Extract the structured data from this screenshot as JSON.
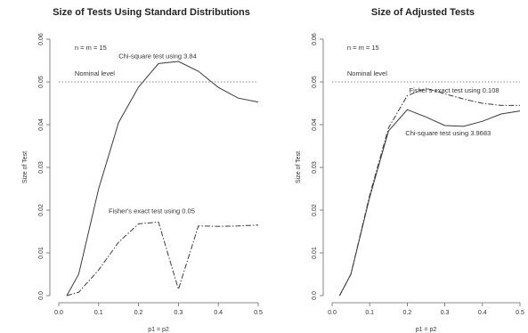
{
  "chart_data": [
    {
      "type": "line",
      "title": "Size of Tests Using Standard Distributions",
      "xlabel": "p1 = p2",
      "ylabel": "Size of Test",
      "xlim": [
        0.0,
        0.5
      ],
      "ylim": [
        0.0,
        0.06
      ],
      "xticks": [
        "0.0",
        "0.1",
        "0.2",
        "0.3",
        "0.4",
        "0.5"
      ],
      "yticks": [
        "0.0",
        "0.01",
        "0.02",
        "0.03",
        "0.04",
        "0.05",
        "0.06"
      ],
      "grid": false,
      "annotations": [
        {
          "text": "n = m = 15",
          "x": 0.04,
          "y": 0.0575
        },
        {
          "text": "Nominal level",
          "x": 0.04,
          "y": 0.0515
        },
        {
          "text": "Chi-square test using 3.84",
          "x": 0.15,
          "y": 0.0555
        },
        {
          "text": "Fisher's exact test using 0.05",
          "x": 0.125,
          "y": 0.0193
        }
      ],
      "series": [
        {
          "style": "solid",
          "x": [
            0.02,
            0.05,
            0.1,
            0.15,
            0.2,
            0.25,
            0.3,
            0.35,
            0.4,
            0.45,
            0.5
          ],
          "y": [
            0.0,
            0.005,
            0.025,
            0.0405,
            0.0488,
            0.0543,
            0.0548,
            0.0525,
            0.0487,
            0.0462,
            0.0453
          ]
        },
        {
          "style": "dotdash",
          "x": [
            0.02,
            0.05,
            0.1,
            0.15,
            0.2,
            0.25,
            0.3,
            0.35,
            0.4,
            0.45,
            0.5
          ],
          "y": [
            0.0,
            0.0008,
            0.006,
            0.0125,
            0.0168,
            0.0172,
            0.0015,
            0.0163,
            0.0162,
            0.0163,
            0.0165
          ]
        },
        {
          "style": "dotted",
          "x": [
            0.0,
            0.5
          ],
          "y": [
            0.05,
            0.05
          ]
        }
      ]
    },
    {
      "type": "line",
      "title": "Size of Adjusted Tests",
      "xlabel": "p1 = p2",
      "ylabel": "Size of Test",
      "xlim": [
        0.0,
        0.5
      ],
      "ylim": [
        0.0,
        0.06
      ],
      "xticks": [
        "0.0",
        "0.1",
        "0.2",
        "0.3",
        "0.4",
        "0.5"
      ],
      "yticks": [
        "0.0",
        "0.01",
        "0.02",
        "0.03",
        "0.04",
        "0.05",
        "0.06"
      ],
      "grid": false,
      "annotations": [
        {
          "text": "n = m = 15",
          "x": 0.04,
          "y": 0.0575
        },
        {
          "text": "Nominal level",
          "x": 0.04,
          "y": 0.0515
        },
        {
          "text": "Fisher's exact test using 0.108",
          "x": 0.205,
          "y": 0.0475
        },
        {
          "text": "Chi-square test using 3.9683",
          "x": 0.195,
          "y": 0.0375
        }
      ],
      "series": [
        {
          "style": "solid",
          "x": [
            0.02,
            0.05,
            0.1,
            0.15,
            0.2,
            0.25,
            0.3,
            0.35,
            0.4,
            0.45,
            0.5
          ],
          "y": [
            0.0,
            0.005,
            0.023,
            0.0385,
            0.0435,
            0.0418,
            0.0398,
            0.0396,
            0.0408,
            0.0425,
            0.0432
          ]
        },
        {
          "style": "dotdash",
          "x": [
            0.02,
            0.05,
            0.1,
            0.15,
            0.2,
            0.25,
            0.3,
            0.35,
            0.4,
            0.45,
            0.5
          ],
          "y": [
            0.0,
            0.005,
            0.0235,
            0.0392,
            0.0468,
            0.0485,
            0.0472,
            0.046,
            0.045,
            0.0445,
            0.0445
          ]
        },
        {
          "style": "dotted",
          "x": [
            0.0,
            0.5
          ],
          "y": [
            0.05,
            0.05
          ]
        }
      ]
    }
  ],
  "colors": {
    "line": "#3a3a3a",
    "axis": "#666666",
    "text": "#222222",
    "background": "#ffffff"
  }
}
